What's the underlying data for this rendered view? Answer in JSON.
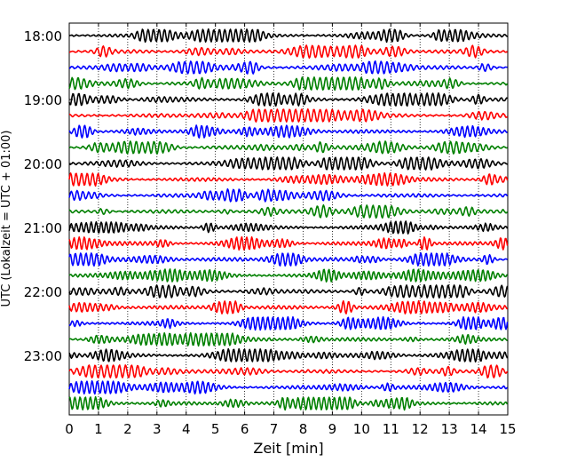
{
  "chart_data": {
    "type": "line",
    "title": "",
    "xlabel": "Zeit  [min]",
    "ylabel": "UTC (Lokalzeit = UTC + 01:00)",
    "xlim": [
      0,
      15
    ],
    "x_ticks": [
      0,
      1,
      2,
      3,
      4,
      5,
      6,
      7,
      8,
      9,
      10,
      11,
      12,
      13,
      14,
      15
    ],
    "y_tick_labels": [
      "18:00",
      "19:00",
      "20:00",
      "21:00",
      "22:00",
      "23:00"
    ],
    "grid": "vertical dotted",
    "trace_interval_min": 15,
    "trace_count": 24,
    "start_time": "18:00",
    "color_cycle": [
      "#000000",
      "#ff0000",
      "#0000ff",
      "#008000"
    ],
    "legend": "none"
  }
}
